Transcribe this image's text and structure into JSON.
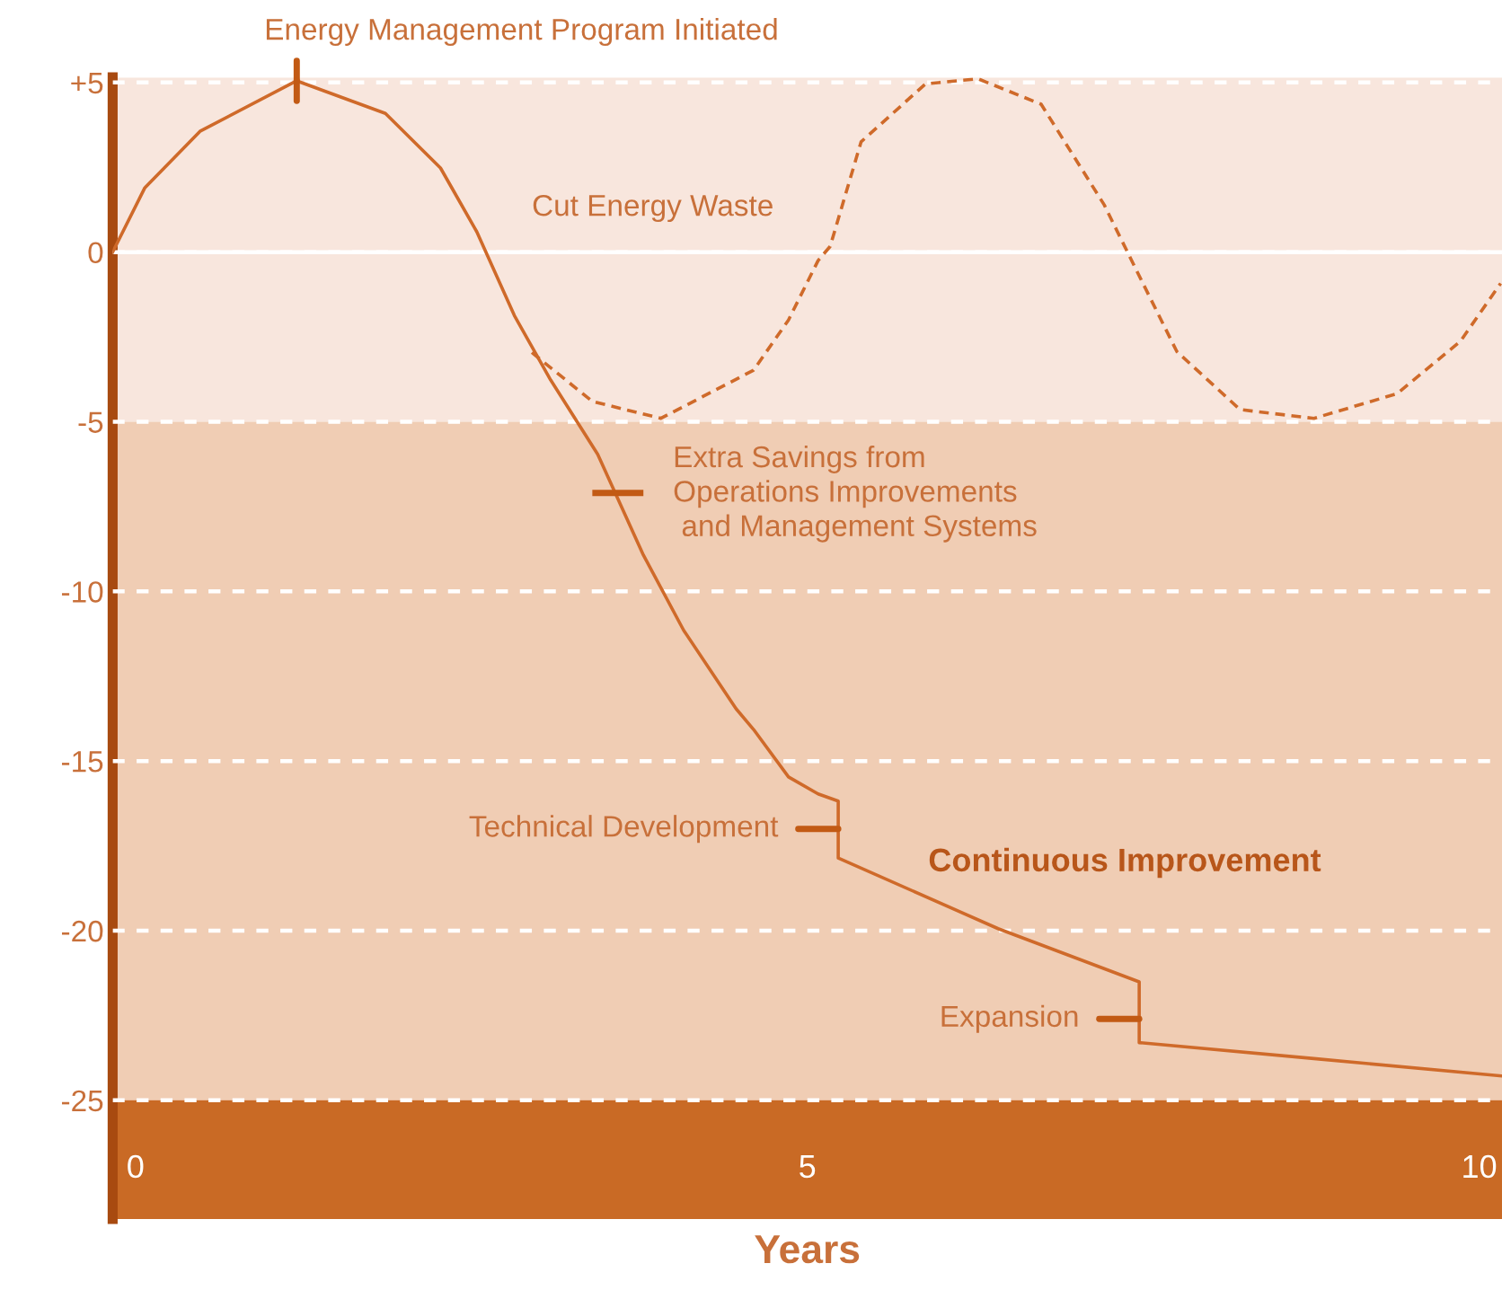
{
  "chart_data": {
    "type": "line",
    "xlabel": "Years",
    "xlim": [
      -0.17,
      10.17
    ],
    "ylim": [
      -28.5,
      5.15
    ],
    "xticks": [
      0,
      5,
      10
    ],
    "yticks": [
      {
        "value": 5,
        "label": "+5"
      },
      0,
      -5,
      -10,
      -15,
      -20,
      -25
    ],
    "grid": "y",
    "marker": "none",
    "series": [
      {
        "color": "#cf6a2a",
        "line_style": "solid",
        "x": [
          -0.17,
          0.07,
          0.48,
          1.2,
          1.86,
          2.27,
          2.54,
          2.82,
          3.09,
          3.44,
          3.78,
          4.08,
          4.47,
          4.6,
          4.86,
          5.08,
          5.23,
          5.23,
          6.42,
          7.47,
          7.47,
          8.77,
          10.16
        ],
        "values": [
          0,
          1.9,
          3.56,
          5.05,
          4.09,
          2.48,
          0.6,
          -1.87,
          -3.77,
          -5.96,
          -8.93,
          -11.15,
          -13.46,
          -14.07,
          -15.47,
          -15.97,
          -16.18,
          -17.86,
          -19.94,
          -21.51,
          -23.3,
          -23.77,
          -24.28
        ]
      },
      {
        "color": "#cf6a2a",
        "line_style": "dashed",
        "x": [
          2.95,
          3.4,
          3.91,
          4.6,
          4.86,
          5.08,
          5.17,
          5.4,
          5.88,
          6.27,
          6.74,
          7.21,
          7.44,
          7.75,
          8.22,
          8.77,
          9.39,
          9.86,
          10.16
        ],
        "values": [
          -2.96,
          -4.4,
          -4.9,
          -3.48,
          -2.0,
          -0.25,
          0.17,
          3.25,
          4.96,
          5.11,
          4.36,
          1.39,
          -0.46,
          -2.93,
          -4.64,
          -4.9,
          -4.17,
          -2.63,
          -0.92
        ]
      }
    ],
    "bands": [
      {
        "axis": "y",
        "from": -5,
        "to": 5.15,
        "color": "#f8e6dd"
      },
      {
        "axis": "y",
        "from": -25,
        "to": -5,
        "color": "#f0cdb4"
      },
      {
        "axis": "y",
        "from": -28.5,
        "to": -25,
        "color": "#c96a25"
      }
    ],
    "ref_lines": [
      {
        "axis": "y",
        "value": 0,
        "color": "#ffffff",
        "line_style": "solid"
      }
    ],
    "annotations": [
      {
        "text": "Energy Management Program Initiated",
        "x": 1.2,
        "y": 5.05
      },
      {
        "text": "Technical Development",
        "x": 5.23,
        "y": -17.0
      },
      {
        "text": "Expansion",
        "x": 7.47,
        "y": -22.6
      },
      "Cut Energy Waste",
      "Extra Savings from\nOperations Improvements\n and Management Systems",
      "Continuous Improvement"
    ]
  }
}
